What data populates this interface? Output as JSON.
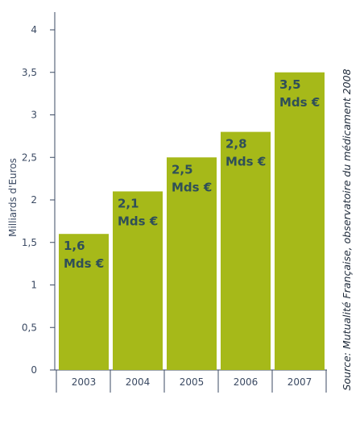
{
  "colors": {
    "bar": "#a6b919",
    "axis": "#3b4a63",
    "label_text": "#2f4f58",
    "background": "#ffffff"
  },
  "source": "Source: Mutualité Française, observatoire du médicament 2008",
  "chart_data": {
    "type": "bar",
    "categories": [
      "2003",
      "2004",
      "2005",
      "2006",
      "2007"
    ],
    "values": [
      1.6,
      2.1,
      2.5,
      2.8,
      3.5
    ],
    "data_labels": [
      [
        "1,6",
        "Mds €"
      ],
      [
        "2,1",
        "Mds €"
      ],
      [
        "2,5",
        "Mds €"
      ],
      [
        "2,8",
        "Mds €"
      ],
      [
        "3,5",
        "Mds €"
      ]
    ],
    "title": "",
    "xlabel": "",
    "ylabel": "Milliards d'Euros",
    "ylim": [
      0,
      4
    ],
    "yticks": [
      {
        "value": 0,
        "label": "0"
      },
      {
        "value": 0.5,
        "label": "0,5"
      },
      {
        "value": 1,
        "label": "1"
      },
      {
        "value": 1.5,
        "label": "1,5"
      },
      {
        "value": 2,
        "label": "2"
      },
      {
        "value": 2.5,
        "label": "2,5"
      },
      {
        "value": 3,
        "label": "3"
      },
      {
        "value": 3.5,
        "label": "3,5"
      },
      {
        "value": 4,
        "label": "4"
      }
    ],
    "grid": false,
    "legend": "none"
  }
}
